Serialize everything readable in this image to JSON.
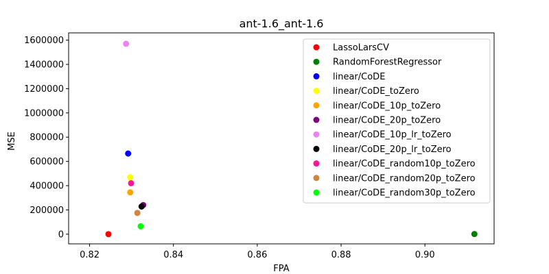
{
  "chart_data": {
    "type": "scatter",
    "title": "ant-1.6_ant-1.6",
    "xlabel": "FPA",
    "ylabel": "MSE",
    "xlim": [
      0.815,
      0.9165
    ],
    "ylim": [
      -80000,
      1660000
    ],
    "xticks": [
      0.82,
      0.84,
      0.86,
      0.88,
      0.9
    ],
    "xtick_labels": [
      "0.82",
      "0.84",
      "0.86",
      "0.88",
      "0.90"
    ],
    "yticks": [
      0,
      200000,
      400000,
      600000,
      800000,
      1000000,
      1200000,
      1400000,
      1600000
    ],
    "ytick_labels": [
      "0",
      "200000",
      "400000",
      "600000",
      "800000",
      "1000000",
      "1200000",
      "1400000",
      "1600000"
    ],
    "grid": false,
    "legend_position": "top-right",
    "series": [
      {
        "name": "LassoLarsCV",
        "color": "#ff0000",
        "x": [
          0.8245
        ],
        "y": [
          0
        ]
      },
      {
        "name": "RandomForestRegressor",
        "color": "#008000",
        "x": [
          0.9118
        ],
        "y": [
          1000
        ]
      },
      {
        "name": "linear/CoDE",
        "color": "#0000ff",
        "x": [
          0.8292
        ],
        "y": [
          665000
        ]
      },
      {
        "name": "linear/CoDE_toZero",
        "color": "#ffff00",
        "x": [
          0.8297
        ],
        "y": [
          470000
        ]
      },
      {
        "name": "linear/CoDE_10p_toZero",
        "color": "#ffa500",
        "x": [
          0.8297
        ],
        "y": [
          345000
        ]
      },
      {
        "name": "linear/CoDE_20p_toZero",
        "color": "#800080",
        "x": [
          0.8328
        ],
        "y": [
          240000
        ]
      },
      {
        "name": "linear/CoDE_10p_lr_toZero",
        "color": "#ee82ee",
        "x": [
          0.8287
        ],
        "y": [
          1570000
        ]
      },
      {
        "name": "linear/CoDE_20p_lr_toZero",
        "color": "#000000",
        "x": [
          0.8324
        ],
        "y": [
          228000
        ]
      },
      {
        "name": "linear/CoDE_random10p_toZero",
        "color": "#ff1493",
        "x": [
          0.8299
        ],
        "y": [
          420000
        ]
      },
      {
        "name": "linear/CoDE_random20p_toZero",
        "color": "#cd853f",
        "x": [
          0.8314
        ],
        "y": [
          175000
        ]
      },
      {
        "name": "linear/CoDE_random30p_toZero",
        "color": "#00ff00",
        "x": [
          0.8322
        ],
        "y": [
          65000
        ]
      }
    ]
  }
}
